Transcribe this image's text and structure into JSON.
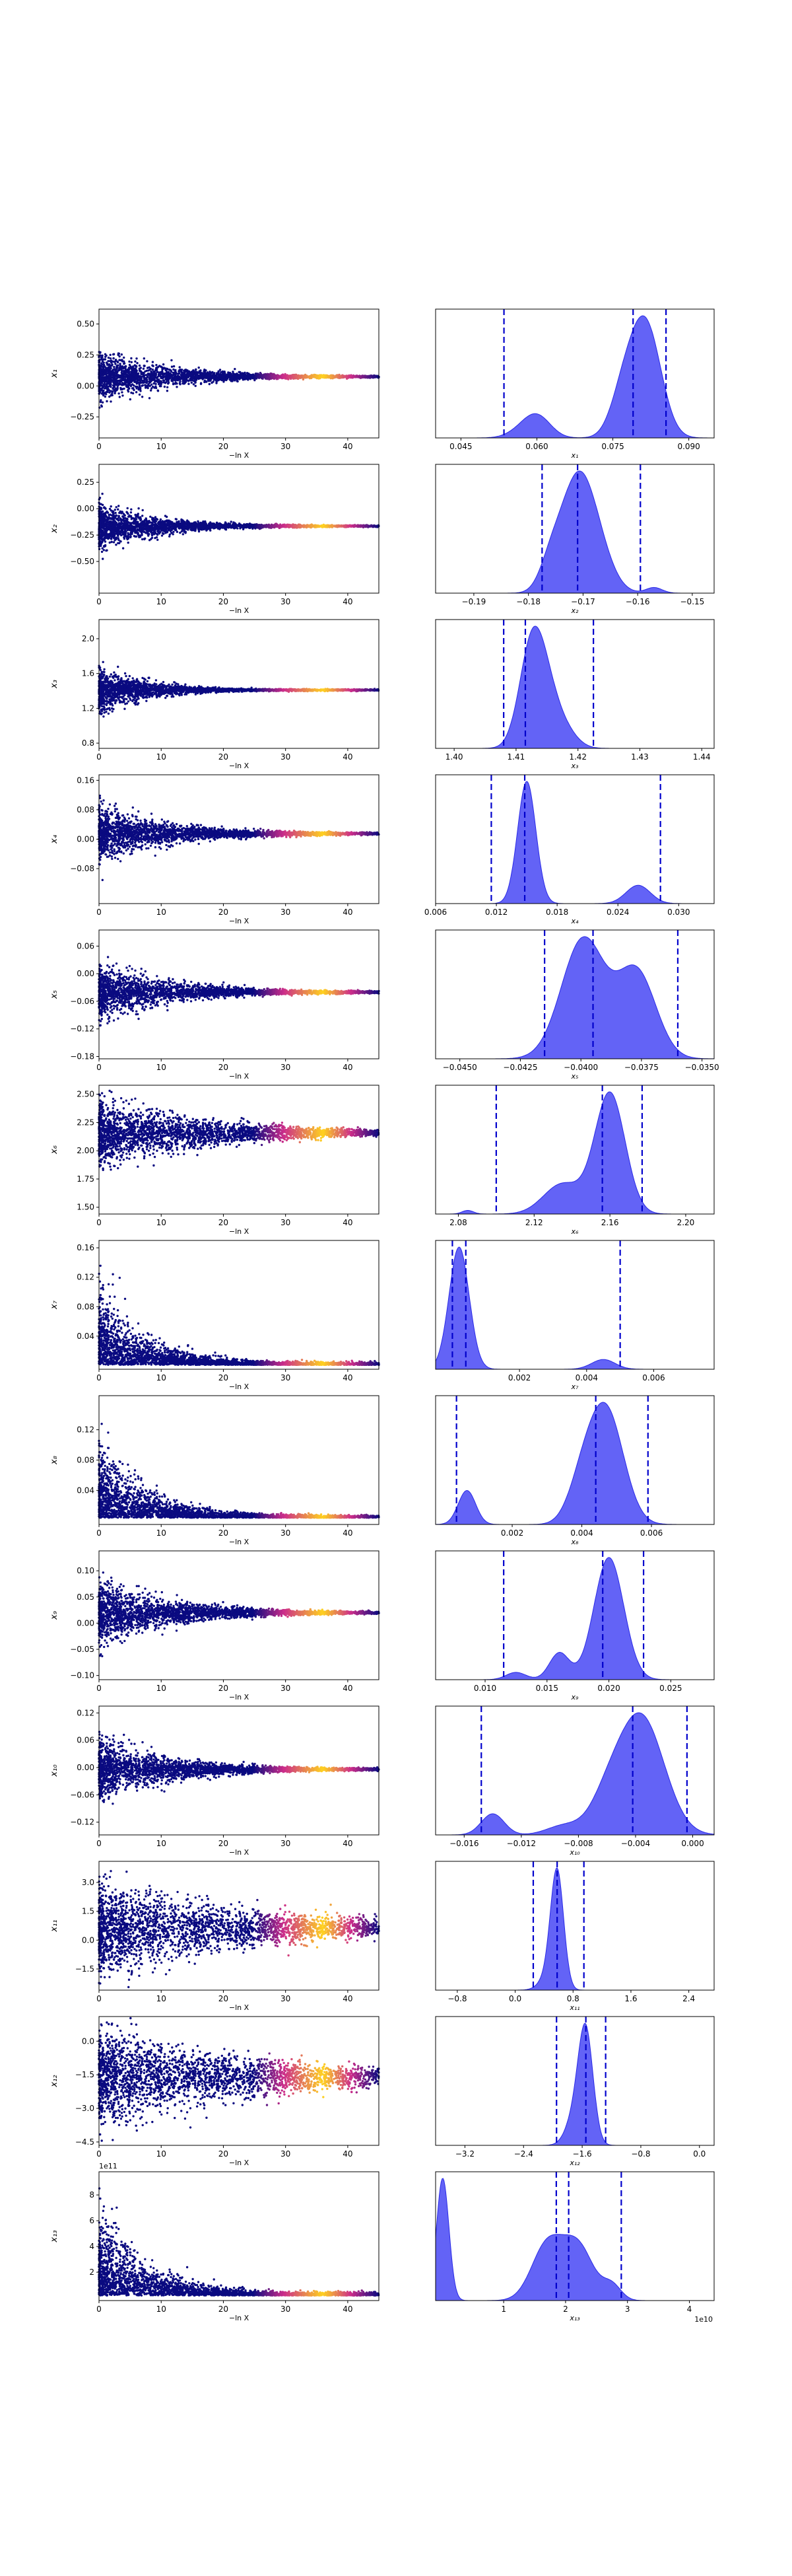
{
  "figure": {
    "background": "#ffffff",
    "x_common_label": "−ln X"
  },
  "colors": {
    "kde_fill": "#5b5bf5",
    "kde_edge": "#2a2ae6",
    "quantile_line": "#0000cc",
    "scatter_low": "#0a0a80",
    "scatter_mid": "#cc2d8a",
    "scatter_high": "#ffd21f"
  },
  "chart_data": [
    {
      "type": "scatter",
      "panel": "trace-1",
      "ylabel": "x₁",
      "xlabel": "−ln X",
      "xlim": [
        0,
        45
      ],
      "xticks": [
        "0",
        "10",
        "20",
        "30",
        "40"
      ],
      "ylim": [
        -0.42,
        0.62
      ],
      "yticks": [
        {
          "v": 0.5,
          "t": "0.50"
        },
        {
          "v": 0.25,
          "t": "0.25"
        },
        {
          "v": 0,
          "t": "0.00"
        },
        {
          "v": -0.25,
          "t": "−0.25"
        }
      ],
      "center": 0.075,
      "spread": 0.28,
      "skew": 0,
      "flare_x": 12,
      "end_x": 45
    },
    {
      "type": "area",
      "panel": "posterior-1",
      "xlabel": "x₁",
      "xlim": [
        0.04,
        0.095
      ],
      "xticks": [
        {
          "v": 0.045,
          "t": "0.045"
        },
        {
          "v": 0.06,
          "t": "0.060"
        },
        {
          "v": 0.075,
          "t": "0.075"
        },
        {
          "v": 0.09,
          "t": "0.090"
        }
      ],
      "quantiles": [
        0.0535,
        0.079,
        0.0855
      ],
      "modes": [
        [
          0.0585,
          0.12,
          0.003
        ],
        [
          0.0605,
          0.11,
          0.0025
        ],
        [
          0.0815,
          1.0,
          0.003
        ],
        [
          0.077,
          0.35,
          0.0025
        ]
      ]
    },
    {
      "type": "scatter",
      "panel": "trace-2",
      "ylabel": "x₂",
      "xlabel": "−ln X",
      "xlim": [
        0,
        45
      ],
      "xticks": [
        "0",
        "10",
        "20",
        "30",
        "40"
      ],
      "ylim": [
        -0.8,
        0.42
      ],
      "yticks": [
        {
          "v": 0.25,
          "t": "0.25"
        },
        {
          "v": 0,
          "t": "0.00"
        },
        {
          "v": -0.25,
          "t": "−0.25"
        },
        {
          "v": -0.5,
          "t": "−0.50"
        }
      ],
      "center": -0.165,
      "spread": 0.32,
      "skew": 0,
      "flare_x": 10,
      "end_x": 45
    },
    {
      "type": "area",
      "panel": "posterior-2",
      "xlabel": "x₂",
      "xlim": [
        -0.197,
        -0.146
      ],
      "xticks": [
        {
          "v": -0.19,
          "t": "−0.19"
        },
        {
          "v": -0.18,
          "t": "−0.18"
        },
        {
          "v": -0.17,
          "t": "−0.17"
        },
        {
          "v": -0.16,
          "t": "−0.16"
        },
        {
          "v": -0.15,
          "t": "−0.15"
        }
      ],
      "quantiles": [
        -0.1775,
        -0.171,
        -0.1595
      ],
      "modes": [
        [
          -0.1715,
          1.0,
          0.003
        ],
        [
          -0.168,
          0.5,
          0.003
        ],
        [
          -0.176,
          0.25,
          0.002
        ],
        [
          -0.157,
          0.06,
          0.0015
        ]
      ]
    },
    {
      "type": "scatter",
      "panel": "trace-3",
      "ylabel": "x₃",
      "xlabel": "−ln X",
      "xlim": [
        0,
        45
      ],
      "xticks": [
        "0",
        "10",
        "20",
        "30",
        "40"
      ],
      "ylim": [
        0.74,
        2.22
      ],
      "yticks": [
        {
          "v": 2.0,
          "t": "2.0"
        },
        {
          "v": 1.6,
          "t": "1.6"
        },
        {
          "v": 1.2,
          "t": "1.2"
        },
        {
          "v": 0.8,
          "t": "0.8"
        }
      ],
      "center": 1.41,
      "spread": 0.38,
      "skew": 0,
      "flare_x": 8,
      "end_x": 45
    },
    {
      "type": "area",
      "panel": "posterior-3",
      "xlabel": "x₃",
      "xlim": [
        1.397,
        1.442
      ],
      "xticks": [
        {
          "v": 1.4,
          "t": "1.40"
        },
        {
          "v": 1.41,
          "t": "1.41"
        },
        {
          "v": 1.42,
          "t": "1.42"
        },
        {
          "v": 1.43,
          "t": "1.43"
        },
        {
          "v": 1.44,
          "t": "1.44"
        }
      ],
      "quantiles": [
        1.408,
        1.4115,
        1.4225
      ],
      "modes": [
        [
          1.4125,
          1.0,
          0.002
        ],
        [
          1.415,
          0.45,
          0.002
        ],
        [
          1.418,
          0.15,
          0.002
        ]
      ]
    },
    {
      "type": "scatter",
      "panel": "trace-4",
      "ylabel": "x₄",
      "xlabel": "−ln X",
      "xlim": [
        0,
        45
      ],
      "xticks": [
        "0",
        "10",
        "20",
        "30",
        "40"
      ],
      "ylim": [
        -0.175,
        0.175
      ],
      "yticks": [
        {
          "v": 0.16,
          "t": "0.16"
        },
        {
          "v": 0.08,
          "t": "0.08"
        },
        {
          "v": 0,
          "t": "0.00"
        },
        {
          "v": -0.08,
          "t": "−0.08"
        }
      ],
      "center": 0.015,
      "spread": 0.11,
      "skew": 0,
      "flare_x": 12,
      "end_x": 45
    },
    {
      "type": "area",
      "panel": "posterior-4",
      "xlabel": "x₄",
      "xlim": [
        0.006,
        0.0335
      ],
      "xticks": [
        {
          "v": 0.006,
          "t": "0.006"
        },
        {
          "v": 0.012,
          "t": "0.012"
        },
        {
          "v": 0.018,
          "t": "0.018"
        },
        {
          "v": 0.024,
          "t": "0.024"
        },
        {
          "v": 0.03,
          "t": "0.030"
        }
      ],
      "quantiles": [
        0.0115,
        0.0148,
        0.0282
      ],
      "modes": [
        [
          0.015,
          1.0,
          0.0009
        ],
        [
          0.026,
          0.15,
          0.0012
        ]
      ]
    },
    {
      "type": "scatter",
      "panel": "trace-5",
      "ylabel": "x₅",
      "xlabel": "−ln X",
      "xlim": [
        0,
        45
      ],
      "xticks": [
        "0",
        "10",
        "20",
        "30",
        "40"
      ],
      "ylim": [
        -0.185,
        0.095
      ],
      "yticks": [
        {
          "v": 0.06,
          "t": "0.06"
        },
        {
          "v": 0,
          "t": "0.00"
        },
        {
          "v": -0.06,
          "t": "−0.06"
        },
        {
          "v": -0.12,
          "t": "−0.12"
        },
        {
          "v": -0.18,
          "t": "−0.18"
        }
      ],
      "center": -0.04,
      "spread": 0.09,
      "skew": 0,
      "flare_x": 12,
      "end_x": 45
    },
    {
      "type": "area",
      "panel": "posterior-5",
      "xlabel": "x₅",
      "xlim": [
        -0.046,
        -0.0345
      ],
      "xticks": [
        {
          "v": -0.045,
          "t": "−0.0450"
        },
        {
          "v": -0.0425,
          "t": "−0.0425"
        },
        {
          "v": -0.04,
          "t": "−0.0400"
        },
        {
          "v": -0.0375,
          "t": "−0.0375"
        },
        {
          "v": -0.035,
          "t": "−0.0350"
        }
      ],
      "quantiles": [
        -0.0415,
        -0.0395,
        -0.036
      ],
      "modes": [
        [
          -0.0399,
          1.0,
          0.0009
        ],
        [
          -0.0377,
          0.72,
          0.0008
        ]
      ]
    },
    {
      "type": "scatter",
      "panel": "trace-6",
      "ylabel": "x₆",
      "xlabel": "−ln X",
      "xlim": [
        0,
        45
      ],
      "xticks": [
        "0",
        "10",
        "20",
        "30",
        "40"
      ],
      "ylim": [
        1.44,
        2.58
      ],
      "yticks": [
        {
          "v": 2.5,
          "t": "2.50"
        },
        {
          "v": 2.25,
          "t": "2.25"
        },
        {
          "v": 2.0,
          "t": "2.00"
        },
        {
          "v": 1.75,
          "t": "1.75"
        },
        {
          "v": 1.5,
          "t": "1.50"
        }
      ],
      "center": 2.16,
      "spread": 0.42,
      "skew": -0.12,
      "flare_x": 20,
      "end_x": 45
    },
    {
      "type": "area",
      "panel": "posterior-6",
      "xlabel": "x₆",
      "xlim": [
        2.068,
        2.215
      ],
      "xticks": [
        {
          "v": 2.08,
          "t": "2.08"
        },
        {
          "v": 2.12,
          "t": "2.12"
        },
        {
          "v": 2.16,
          "t": "2.16"
        },
        {
          "v": 2.2,
          "t": "2.20"
        }
      ],
      "quantiles": [
        2.1,
        2.156,
        2.177
      ],
      "modes": [
        [
          2.16,
          1.0,
          0.008
        ],
        [
          2.135,
          0.25,
          0.01
        ],
        [
          2.085,
          0.03,
          0.003
        ]
      ]
    },
    {
      "type": "scatter",
      "panel": "trace-7",
      "ylabel": "x₇",
      "xlabel": "−ln X",
      "xlim": [
        0,
        45
      ],
      "xticks": [
        "0",
        "10",
        "20",
        "30",
        "40"
      ],
      "ylim": [
        -0.005,
        0.17
      ],
      "yticks": [
        {
          "v": 0.16,
          "t": "0.16"
        },
        {
          "v": 0.12,
          "t": "0.12"
        },
        {
          "v": 0.08,
          "t": "0.08"
        },
        {
          "v": 0.04,
          "t": "0.04"
        }
      ],
      "center": 0.001,
      "spread": 0.14,
      "skew": 1,
      "flare_x": 8,
      "end_x": 45
    },
    {
      "type": "area",
      "panel": "posterior-7",
      "xlabel": "x₇",
      "xlim": [
        -0.0005,
        0.0078
      ],
      "xticks": [
        {
          "v": 0.002,
          "t": "0.002"
        },
        {
          "v": 0.004,
          "t": "0.004"
        },
        {
          "v": 0.006,
          "t": "0.006"
        }
      ],
      "quantiles": [
        0.0,
        0.0004,
        0.005
      ],
      "modes": [
        [
          0.0002,
          1.0,
          0.0003
        ],
        [
          0.0045,
          0.08,
          0.00035
        ]
      ]
    },
    {
      "type": "scatter",
      "panel": "trace-8",
      "ylabel": "x₈",
      "xlabel": "−ln X",
      "xlim": [
        0,
        45
      ],
      "xticks": [
        "0",
        "10",
        "20",
        "30",
        "40"
      ],
      "ylim": [
        -0.005,
        0.165
      ],
      "yticks": [
        {
          "v": 0.12,
          "t": "0.12"
        },
        {
          "v": 0.08,
          "t": "0.08"
        },
        {
          "v": 0.04,
          "t": "0.04"
        }
      ],
      "center": 0.004,
      "spread": 0.13,
      "skew": 1,
      "flare_x": 8,
      "end_x": 45
    },
    {
      "type": "area",
      "panel": "posterior-8",
      "xlabel": "x₈",
      "xlim": [
        -0.0002,
        0.0078
      ],
      "xticks": [
        {
          "v": 0.002,
          "t": "0.002"
        },
        {
          "v": 0.004,
          "t": "0.004"
        },
        {
          "v": 0.006,
          "t": "0.006"
        }
      ],
      "quantiles": [
        0.0004,
        0.0044,
        0.0059
      ],
      "modes": [
        [
          0.0047,
          1.0,
          0.0005
        ],
        [
          0.004,
          0.3,
          0.0004
        ],
        [
          0.0007,
          0.3,
          0.00025
        ]
      ]
    },
    {
      "type": "scatter",
      "panel": "trace-9",
      "ylabel": "x₉",
      "xlabel": "−ln X",
      "xlim": [
        0,
        45
      ],
      "xticks": [
        "0",
        "10",
        "20",
        "30",
        "40"
      ],
      "ylim": [
        -0.108,
        0.138
      ],
      "yticks": [
        {
          "v": 0.1,
          "t": "0.10"
        },
        {
          "v": 0.05,
          "t": "0.05"
        },
        {
          "v": 0,
          "t": "0.00"
        },
        {
          "v": -0.05,
          "t": "−0.05"
        },
        {
          "v": -0.1,
          "t": "−0.10"
        }
      ],
      "center": 0.02,
      "spread": 0.09,
      "skew": 0,
      "flare_x": 12,
      "end_x": 45
    },
    {
      "type": "area",
      "panel": "posterior-9",
      "xlabel": "x₉",
      "xlim": [
        0.006,
        0.0285
      ],
      "xticks": [
        {
          "v": 0.01,
          "t": "0.010"
        },
        {
          "v": 0.015,
          "t": "0.015"
        },
        {
          "v": 0.02,
          "t": "0.020"
        },
        {
          "v": 0.025,
          "t": "0.025"
        }
      ],
      "quantiles": [
        0.0115,
        0.0195,
        0.0228
      ],
      "modes": [
        [
          0.02,
          1.0,
          0.0012
        ],
        [
          0.016,
          0.22,
          0.0008
        ],
        [
          0.0125,
          0.06,
          0.0008
        ]
      ]
    },
    {
      "type": "scatter",
      "panel": "trace-10",
      "ylabel": "x₁₀",
      "xlabel": "−ln X",
      "xlim": [
        0,
        45
      ],
      "xticks": [
        "0",
        "10",
        "20",
        "30",
        "40"
      ],
      "ylim": [
        -0.148,
        0.135
      ],
      "yticks": [
        {
          "v": 0.12,
          "t": "0.12"
        },
        {
          "v": 0.06,
          "t": "0.06"
        },
        {
          "v": 0,
          "t": "0.00"
        },
        {
          "v": -0.06,
          "t": "−0.06"
        },
        {
          "v": -0.12,
          "t": "−0.12"
        }
      ],
      "center": -0.004,
      "spread": 0.1,
      "skew": 0,
      "flare_x": 12,
      "end_x": 45
    },
    {
      "type": "area",
      "panel": "posterior-10",
      "xlabel": "x₁₀",
      "xlim": [
        -0.018,
        0.0015
      ],
      "xticks": [
        {
          "v": -0.016,
          "t": "−0.016"
        },
        {
          "v": -0.012,
          "t": "−0.012"
        },
        {
          "v": -0.008,
          "t": "−0.008"
        },
        {
          "v": -0.004,
          "t": "−0.004"
        },
        {
          "v": 0.0,
          "t": "0.000"
        }
      ],
      "quantiles": [
        -0.0148,
        -0.0042,
        -0.0004
      ],
      "modes": [
        [
          -0.0036,
          1.0,
          0.0016
        ],
        [
          -0.006,
          0.25,
          0.0012
        ],
        [
          -0.014,
          0.18,
          0.0008
        ],
        [
          -0.009,
          0.08,
          0.0012
        ]
      ]
    },
    {
      "type": "scatter",
      "panel": "trace-11",
      "ylabel": "x₁₁",
      "xlabel": "−ln X",
      "xlim": [
        0,
        45
      ],
      "xticks": [
        "0",
        "10",
        "20",
        "30",
        "40"
      ],
      "ylim": [
        -2.6,
        4.1
      ],
      "yticks": [
        {
          "v": 3.0,
          "t": "3.0"
        },
        {
          "v": 1.5,
          "t": "1.5"
        },
        {
          "v": 0,
          "t": "0.0"
        },
        {
          "v": -1.5,
          "t": "−1.5"
        }
      ],
      "center": 0.6,
      "spread": 3.6,
      "skew": 0,
      "flare_x": 28,
      "end_x": 45
    },
    {
      "type": "area",
      "panel": "posterior-11",
      "xlabel": "x₁₁",
      "xlim": [
        -1.1,
        2.75
      ],
      "xticks": [
        {
          "v": -0.8,
          "t": "−0.8"
        },
        {
          "v": 0,
          "t": "0.0"
        },
        {
          "v": 0.8,
          "t": "0.8"
        },
        {
          "v": 1.6,
          "t": "1.6"
        },
        {
          "v": 2.4,
          "t": "2.4"
        }
      ],
      "quantiles": [
        0.25,
        0.58,
        0.95
      ],
      "modes": [
        [
          0.58,
          1.0,
          0.09
        ],
        [
          0.45,
          0.1,
          0.12
        ]
      ]
    },
    {
      "type": "scatter",
      "panel": "trace-12",
      "ylabel": "x₁₂",
      "xlabel": "−ln X",
      "xlim": [
        0,
        45
      ],
      "xticks": [
        "0",
        "10",
        "20",
        "30",
        "40"
      ],
      "ylim": [
        -4.65,
        1.1
      ],
      "yticks": [
        {
          "v": 0,
          "t": "0.0"
        },
        {
          "v": -1.5,
          "t": "−1.5"
        },
        {
          "v": -3.0,
          "t": "−3.0"
        },
        {
          "v": -4.5,
          "t": "−4.5"
        }
      ],
      "center": -1.6,
      "spread": 3.2,
      "skew": 0,
      "flare_x": 28,
      "end_x": 45
    },
    {
      "type": "area",
      "panel": "posterior-12",
      "xlabel": "x₁₂",
      "xlim": [
        -3.6,
        0.2
      ],
      "xticks": [
        {
          "v": -3.2,
          "t": "−3.2"
        },
        {
          "v": -2.4,
          "t": "−2.4"
        },
        {
          "v": -1.6,
          "t": "−1.6"
        },
        {
          "v": -0.8,
          "t": "−0.8"
        },
        {
          "v": 0,
          "t": "0.0"
        }
      ],
      "quantiles": [
        -1.95,
        -1.55,
        -1.28
      ],
      "modes": [
        [
          -1.55,
          1.0,
          0.1
        ],
        [
          -1.7,
          0.25,
          0.12
        ]
      ]
    },
    {
      "type": "scatter",
      "panel": "trace-13",
      "ylabel": "x₁₃",
      "xlabel": "−ln X",
      "xlim": [
        0,
        45
      ],
      "xticks": [
        "0",
        "10",
        "20",
        "30",
        "40"
      ],
      "ylim": [
        -20000000000.0,
        980000000000.0
      ],
      "yticks": [
        {
          "v": 800000000000.0,
          "t": "8"
        },
        {
          "v": 600000000000.0,
          "t": "6"
        },
        {
          "v": 400000000000.0,
          "t": "4"
        },
        {
          "v": 200000000000.0,
          "t": "2"
        }
      ],
      "offset_text": "1e11",
      "center": 20000000000.0,
      "spread": 900000000000.0,
      "skew": 1,
      "flare_x": 8,
      "end_x": 45
    },
    {
      "type": "area",
      "panel": "posterior-13",
      "xlabel": "x₁₃",
      "xlim": [
        -1000000000.0,
        44000000000.0
      ],
      "xticks": [
        {
          "v": 10000000000.0,
          "t": "1"
        },
        {
          "v": 20000000000.0,
          "t": "2"
        },
        {
          "v": 30000000000.0,
          "t": "3"
        },
        {
          "v": 40000000000.0,
          "t": "4"
        }
      ],
      "offset_text": "1e10",
      "quantiles": [
        18500000000.0,
        20500000000.0,
        29000000000.0
      ],
      "modes": [
        [
          150000000.0,
          1.0,
          1000000000.0
        ],
        [
          17000000000.0,
          0.45,
          2500000000.0
        ],
        [
          22000000000.0,
          0.44,
          2500000000.0
        ],
        [
          27500000000.0,
          0.12,
          1500000000.0
        ]
      ]
    }
  ]
}
